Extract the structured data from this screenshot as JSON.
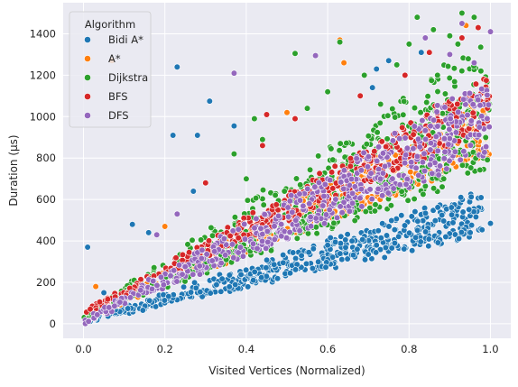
{
  "chart_data": {
    "type": "scatter",
    "title": "",
    "xlabel": "Visited Vertices (Normalized)",
    "ylabel": "Duration (μs)",
    "xlim": [
      -0.05,
      1.05
    ],
    "ylim": [
      -70,
      1550
    ],
    "xticks": [
      0.0,
      0.2,
      0.4,
      0.6,
      0.8,
      1.0
    ],
    "xtick_labels": [
      "0.0",
      "0.2",
      "0.4",
      "0.6",
      "0.8",
      "1.0"
    ],
    "yticks": [
      0,
      200,
      400,
      600,
      800,
      1000,
      1200,
      1400
    ],
    "ytick_labels": [
      "0",
      "200",
      "400",
      "600",
      "800",
      "1000",
      "1200",
      "1400"
    ],
    "grid": true,
    "style": "seaborn-darkgrid",
    "legend": {
      "title": "Algorithm",
      "placement": "top-left"
    },
    "point_marker": "circle",
    "series": [
      {
        "name": "Bidi A*",
        "color": "#1f77b4",
        "trend": {
          "slope_low": 440,
          "slope_high": 650,
          "intercept": 10,
          "x_max": 0.98,
          "count": 520
        },
        "outliers": [
          [
            0.01,
            370
          ],
          [
            0.12,
            480
          ],
          [
            0.23,
            1240
          ],
          [
            0.22,
            910
          ],
          [
            0.28,
            910
          ],
          [
            0.31,
            1075
          ],
          [
            0.37,
            955
          ],
          [
            0.27,
            640
          ],
          [
            0.55,
            470
          ],
          [
            0.71,
            1140
          ],
          [
            0.72,
            1230
          ],
          [
            0.75,
            1270
          ],
          [
            0.83,
            1310
          ],
          [
            0.89,
            420
          ],
          [
            1.0,
            485
          ],
          [
            0.72,
            380
          ],
          [
            0.66,
            400
          ],
          [
            0.7,
            335
          ],
          [
            0.74,
            320
          ],
          [
            0.6,
            380
          ],
          [
            0.16,
            440
          ],
          [
            0.05,
            150
          ]
        ]
      },
      {
        "name": "A*",
        "color": "#ff7f0e",
        "trend": {
          "slope_low": 780,
          "slope_high": 1100,
          "intercept": 30,
          "x_max": 1.0,
          "count": 420
        },
        "outliers": [
          [
            0.07,
            1270
          ],
          [
            0.5,
            1020
          ],
          [
            0.64,
            1260
          ],
          [
            0.63,
            1370
          ],
          [
            0.94,
            1440
          ],
          [
            0.99,
            830
          ],
          [
            0.2,
            470
          ],
          [
            0.03,
            180
          ]
        ]
      },
      {
        "name": "Dijkstra",
        "color": "#2ca02c",
        "trend": {
          "slope_low": 700,
          "slope_high": 1350,
          "intercept": 40,
          "x_max": 1.0,
          "count": 560
        },
        "outliers": [
          [
            0.52,
            1305
          ],
          [
            0.63,
            1360
          ],
          [
            0.8,
            1350
          ],
          [
            0.82,
            1480
          ],
          [
            0.86,
            1420
          ],
          [
            0.9,
            1390
          ],
          [
            0.93,
            1500
          ],
          [
            0.69,
            1200
          ],
          [
            0.6,
            1120
          ],
          [
            0.73,
            1060
          ],
          [
            0.37,
            820
          ],
          [
            0.42,
            990
          ],
          [
            0.44,
            890
          ],
          [
            0.55,
            1040
          ],
          [
            0.77,
            1250
          ],
          [
            0.87,
            1200
          ],
          [
            0.92,
            1350
          ],
          [
            0.96,
            1480
          ],
          [
            0.4,
            700
          ]
        ]
      },
      {
        "name": "BFS",
        "color": "#d62728",
        "trend": {
          "slope_low": 900,
          "slope_high": 1150,
          "intercept": 50,
          "x_max": 1.0,
          "count": 420
        },
        "outliers": [
          [
            0.44,
            860
          ],
          [
            0.52,
            990
          ],
          [
            0.68,
            1100
          ],
          [
            0.79,
            1200
          ],
          [
            0.85,
            1310
          ],
          [
            0.93,
            1380
          ],
          [
            0.97,
            1430
          ],
          [
            0.99,
            1175
          ],
          [
            0.45,
            1010
          ],
          [
            0.3,
            680
          ]
        ]
      },
      {
        "name": "DFS",
        "color": "#9467bd",
        "trend": {
          "slope_low": 820,
          "slope_high": 1200,
          "intercept": 10,
          "x_max": 1.0,
          "count": 520
        },
        "outliers": [
          [
            0.37,
            1210
          ],
          [
            0.57,
            1295
          ],
          [
            0.84,
            1380
          ],
          [
            0.93,
            1450
          ],
          [
            1.0,
            1410
          ],
          [
            0.9,
            1300
          ],
          [
            0.96,
            1260
          ],
          [
            0.23,
            530
          ],
          [
            0.18,
            430
          ]
        ]
      }
    ]
  }
}
